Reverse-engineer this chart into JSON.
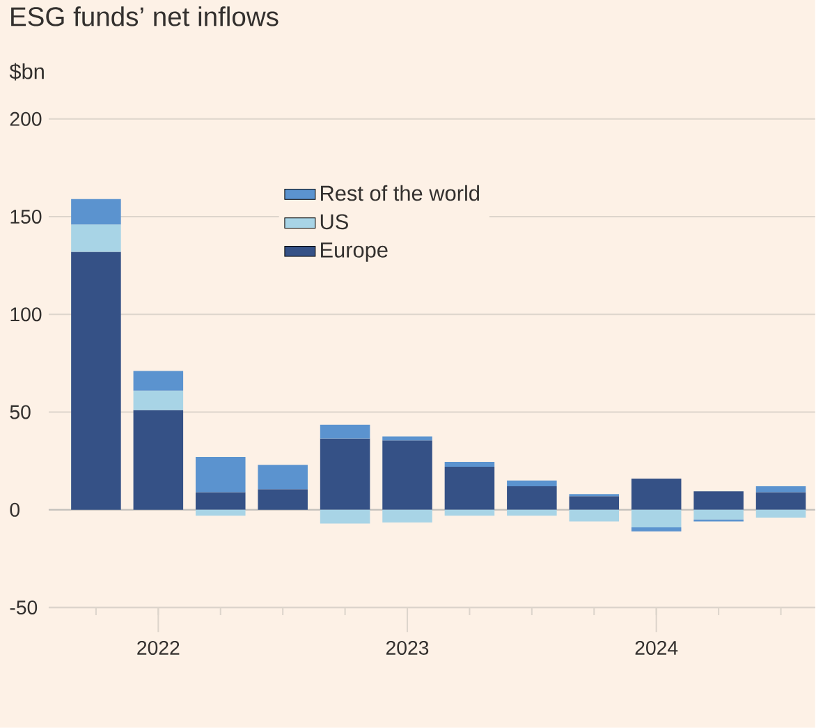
{
  "chart_data": {
    "type": "bar",
    "title": "ESG funds’ net inflows",
    "ylabel": "$bn",
    "categories": [
      null,
      "2022",
      null,
      null,
      null,
      "2023",
      null,
      null,
      null,
      "2024",
      null,
      null
    ],
    "stacked": true,
    "series": [
      {
        "name": "Europe",
        "color": "#355186",
        "values": [
          132,
          51,
          9,
          10.5,
          36.5,
          35.5,
          22,
          12,
          7,
          16,
          9.5,
          9
        ]
      },
      {
        "name": "US",
        "color": "#a8d4e6",
        "values": [
          14,
          10,
          -3,
          0,
          -7,
          -6.5,
          -3,
          -3,
          -6,
          -9,
          -5,
          -4
        ]
      },
      {
        "name": "Rest of the world",
        "color": "#5b93cf",
        "values": [
          13,
          10,
          18,
          12.5,
          7,
          2,
          2.5,
          3,
          1,
          -2,
          -1,
          3
        ]
      }
    ],
    "ylim": [
      -50,
      200
    ],
    "yticks": [
      -50,
      0,
      50,
      100,
      150,
      200
    ],
    "grid": "y",
    "legend": "top"
  }
}
